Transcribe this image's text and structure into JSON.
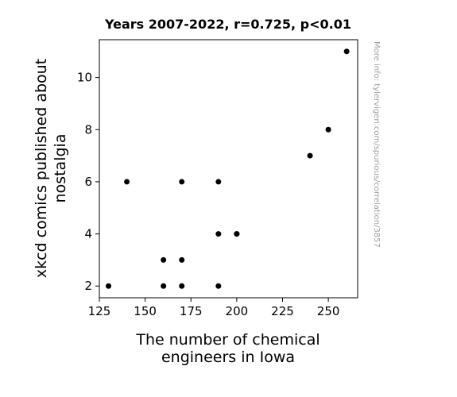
{
  "chart_data": {
    "type": "scatter",
    "title": "Years 2007-2022, r=0.725, p<0.01",
    "xlabel_lines": [
      "The number of chemical",
      "engineers in Iowa"
    ],
    "ylabel_lines": [
      "xkcd comics published about",
      "nostalgia"
    ],
    "xlim": [
      125,
      266
    ],
    "ylim": [
      1.55,
      11.45
    ],
    "xticks": [
      125,
      150,
      175,
      200,
      225,
      250
    ],
    "yticks": [
      2,
      4,
      6,
      8,
      10
    ],
    "grid": false,
    "point_color": "#000000",
    "points": [
      {
        "x": 130,
        "y": 2
      },
      {
        "x": 140,
        "y": 6
      },
      {
        "x": 160,
        "y": 3
      },
      {
        "x": 160,
        "y": 2
      },
      {
        "x": 170,
        "y": 6
      },
      {
        "x": 170,
        "y": 3
      },
      {
        "x": 170,
        "y": 2
      },
      {
        "x": 190,
        "y": 6
      },
      {
        "x": 190,
        "y": 4
      },
      {
        "x": 190,
        "y": 2
      },
      {
        "x": 200,
        "y": 4
      },
      {
        "x": 200,
        "y": 4
      },
      {
        "x": 240,
        "y": 7
      },
      {
        "x": 250,
        "y": 8
      },
      {
        "x": 260,
        "y": 11
      }
    ],
    "watermark": "More info: tylervigen.com/spurious/correlation/3857"
  }
}
